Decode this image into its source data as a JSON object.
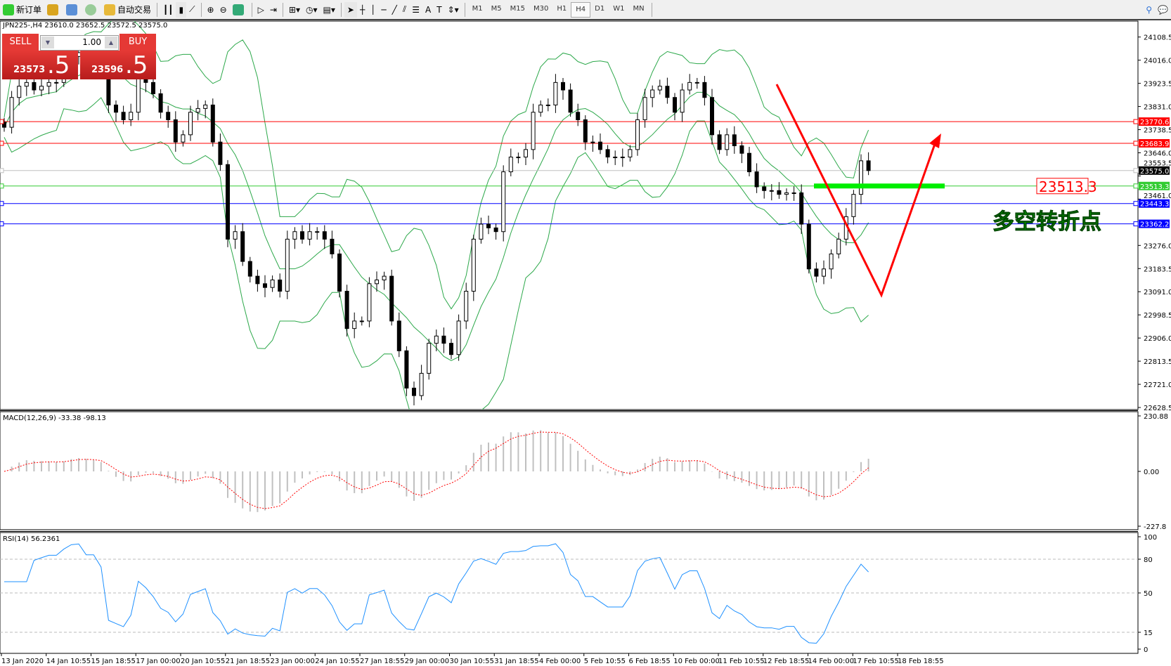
{
  "toolbar": {
    "new_order": "新订单",
    "auto_trading": "自动交易",
    "timeframes": [
      "M1",
      "M5",
      "M15",
      "M30",
      "H1",
      "H4",
      "D1",
      "W1",
      "MN"
    ],
    "active_timeframe": "H4"
  },
  "header": {
    "text": "JPN225-,H4  23610.0 23652.5 23572.5 23575.0"
  },
  "trade_panel": {
    "sell": "SELL",
    "buy": "BUY",
    "lot": "1.00",
    "sell_price_main": "23573",
    "sell_price_frac": ".5",
    "buy_price_main": "23596",
    "buy_price_frac": ".5"
  },
  "annotation": {
    "text": "多空转折点",
    "level_label": "23513.3",
    "text_color": "#00cc00",
    "arrow_color": "#ff0000"
  },
  "macd_label": "MACD(12,26,9) -33.38 -98.13",
  "rsi_label": "RSI(14) 56.2361",
  "chart_data": {
    "type": "candlestick",
    "symbol": "JPN225-",
    "timeframe": "H4",
    "ylim": [
      22628.5,
      24108.5
    ],
    "price_ticks": [
      "24108.5",
      "24016.0",
      "23923.5",
      "23831.0",
      "23738.5",
      "23646.0",
      "23553.5",
      "23461.0",
      "23276.0",
      "23183.5",
      "23091.0",
      "22998.5",
      "22906.0",
      "22813.5",
      "22721.0",
      "22628.5"
    ],
    "x_ticks": [
      "13 Jan 2020",
      "14 Jan 10:55",
      "15 Jan 18:55",
      "17 Jan 00:00",
      "20 Jan 10:55",
      "21 Jan 18:55",
      "23 Jan 00:00",
      "24 Jan 10:55",
      "27 Jan 18:55",
      "29 Jan 00:00",
      "30 Jan 10:55",
      "31 Jan 18:55",
      "4 Feb 00:00",
      "5 Feb 10:55",
      "6 Feb 18:55",
      "10 Feb 00:00",
      "11 Feb 10:55",
      "12 Feb 18:55",
      "14 Feb 00:00",
      "17 Feb 10:55",
      "18 Feb 18:55"
    ],
    "closes": [
      23748,
      23867,
      23912,
      23927,
      23897,
      23912,
      23927,
      23927,
      23971,
      24031,
      24046,
      24031,
      24031,
      24016,
      23837,
      23808,
      23778,
      23808,
      23957,
      23927,
      23882,
      23808,
      23778,
      23689,
      23718,
      23808,
      23823,
      23837,
      23689,
      23599,
      23301,
      23331,
      23212,
      23153,
      23123,
      23108,
      23138,
      23093,
      23301,
      23331,
      23301,
      23331,
      23331,
      23301,
      23242,
      23093,
      22944,
      22974,
      22974,
      23123,
      23138,
      23153,
      22974,
      22855,
      22706,
      22676,
      22765,
      22885,
      22914,
      22885,
      22840,
      22974,
      23093,
      23301,
      23361,
      23346,
      23331,
      23570,
      23629,
      23629,
      23659,
      23808,
      23837,
      23837,
      23927,
      23897,
      23808,
      23778,
      23689,
      23689,
      23659,
      23629,
      23629,
      23629,
      23659,
      23778,
      23867,
      23897,
      23912,
      23867,
      23808,
      23897,
      23927,
      23927,
      23867,
      23718,
      23659,
      23718,
      23674,
      23644,
      23570,
      23510,
      23495,
      23495,
      23480,
      23486,
      23486,
      23361,
      23182,
      23153,
      23182,
      23242,
      23301,
      23391,
      23480,
      23614,
      23575
    ],
    "horizontal_lines": [
      {
        "price": "23770.6",
        "color": "#ff0000"
      },
      {
        "price": "23683.9",
        "color": "#ff0000"
      },
      {
        "price": "23575.0",
        "color": "#c0c0c0",
        "current": true
      },
      {
        "price": "23513.3",
        "color": "#33cc33"
      },
      {
        "price": "23443.3",
        "color": "#0000ff"
      },
      {
        "price": "23362.2",
        "color": "#0000ff"
      }
    ],
    "indicators": [
      "Bollinger Bands",
      "MACD(12,26,9)",
      "RSI(14)"
    ],
    "macd_ticks": [
      "230.88",
      "0.00",
      "-227.8"
    ],
    "macd_range": [
      -227.8,
      230.88
    ],
    "rsi_ticks": [
      "100",
      "80",
      "50",
      "15",
      "0"
    ],
    "rsi_levels": [
      80,
      50,
      15
    ],
    "colors": {
      "bands": "#2ca84a",
      "macd_hist": "#c0c0c0",
      "macd_signal": "#ff0000",
      "rsi": "#1e90ff"
    }
  }
}
